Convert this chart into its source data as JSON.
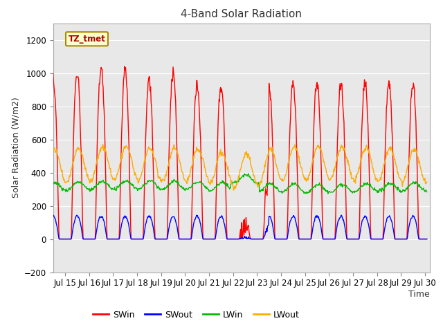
{
  "title": "4-Band Solar Radiation",
  "xlabel": "Time",
  "ylabel": "Solar Radiation (W/m2)",
  "ylim": [
    -200,
    1300
  ],
  "yticks": [
    -200,
    0,
    200,
    400,
    600,
    800,
    1000,
    1200
  ],
  "xlim_days": [
    14.5,
    30.2
  ],
  "x_tick_labels": [
    "Jul 15",
    "Jul 16",
    "Jul 17",
    "Jul 18",
    "Jul 19",
    "Jul 20",
    "Jul 21",
    "Jul 22",
    "Jul 23",
    "Jul 24",
    "Jul 25",
    "Jul 26",
    "Jul 27",
    "Jul 28",
    "Jul 29",
    "Jul 30"
  ],
  "x_tick_positions": [
    15,
    16,
    17,
    18,
    19,
    20,
    21,
    22,
    23,
    24,
    25,
    26,
    27,
    28,
    29,
    30
  ],
  "legend_label": "TZ_tmet",
  "series_names": [
    "SWin",
    "SWout",
    "LWin",
    "LWout"
  ],
  "series_colors": [
    "#ff0000",
    "#0000ff",
    "#00bb00",
    "#ffaa00"
  ],
  "background_color": "#ffffff",
  "plot_bg_color": "#e8e8e8",
  "grid_color": "#ffffff",
  "title_fontsize": 11,
  "axis_fontsize": 9,
  "tick_fontsize": 8.5
}
